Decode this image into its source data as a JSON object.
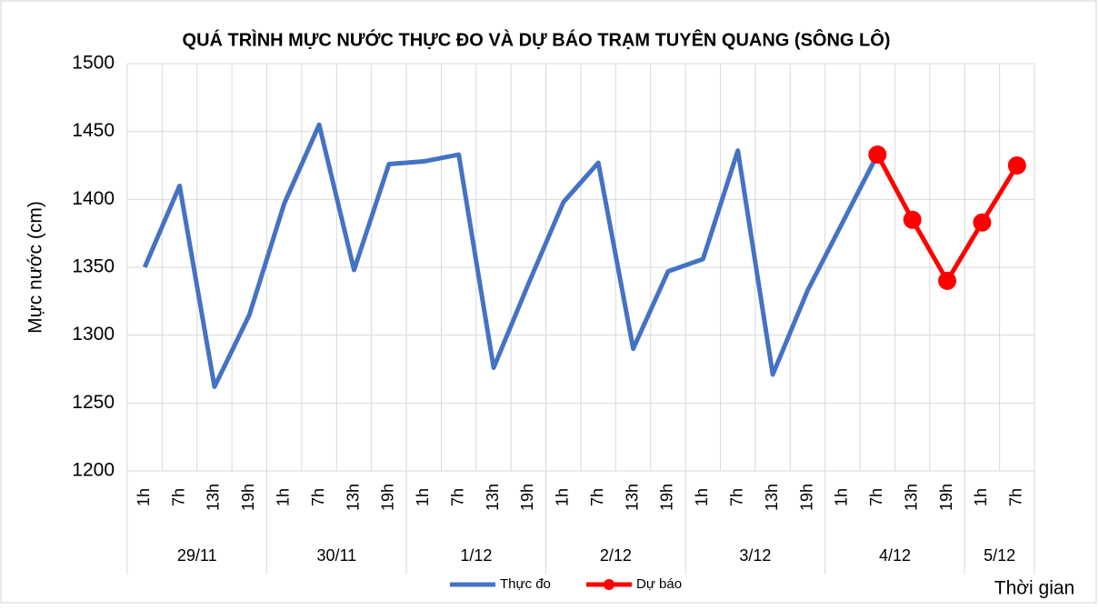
{
  "chart_data": {
    "type": "line",
    "title": "QUÁ TRÌNH MỰC NƯỚC THỰC ĐO VÀ DỰ BÁO TRẠM TUYÊN QUANG (SÔNG LÔ)",
    "y_label": "Mực nước (cm)",
    "x_label": "Thời gian",
    "categories": [
      "1h",
      "7h",
      "13h",
      "19h",
      "1h",
      "7h",
      "13h",
      "19h",
      "1h",
      "7h",
      "13h",
      "19h",
      "1h",
      "7h",
      "13h",
      "19h",
      "1h",
      "7h",
      "13h",
      "19h",
      "1h",
      "7h",
      "13h",
      "19h",
      "1h",
      "7h"
    ],
    "groups": [
      {
        "label": "29/11",
        "count": 4
      },
      {
        "label": "30/11",
        "count": 4
      },
      {
        "label": "1/12",
        "count": 4
      },
      {
        "label": "2/12",
        "count": 4
      },
      {
        "label": "3/12",
        "count": 4
      },
      {
        "label": "4/12",
        "count": 4
      },
      {
        "label": "5/12",
        "count": 2
      }
    ],
    "series": [
      {
        "name": "Thực đo",
        "color": "#4472c4",
        "markers": false,
        "values": [
          1350,
          1410,
          1262,
          1315,
          1397,
          1455,
          1348,
          1426,
          1428,
          1433,
          1276,
          1338,
          1398,
          1427,
          1290,
          1347,
          1356,
          1436,
          1271,
          1333,
          1383,
          1433,
          null,
          null,
          null,
          null
        ]
      },
      {
        "name": "Dự báo",
        "color": "#ff0000",
        "markers": true,
        "values": [
          null,
          null,
          null,
          null,
          null,
          null,
          null,
          null,
          null,
          null,
          null,
          null,
          null,
          null,
          null,
          null,
          null,
          null,
          null,
          null,
          null,
          1433,
          1385,
          1340,
          1383,
          1425
        ]
      }
    ],
    "ylim": [
      1200,
      1500
    ],
    "yticks": [
      1200,
      1250,
      1300,
      1350,
      1400,
      1450,
      1500
    ],
    "grid": true
  }
}
